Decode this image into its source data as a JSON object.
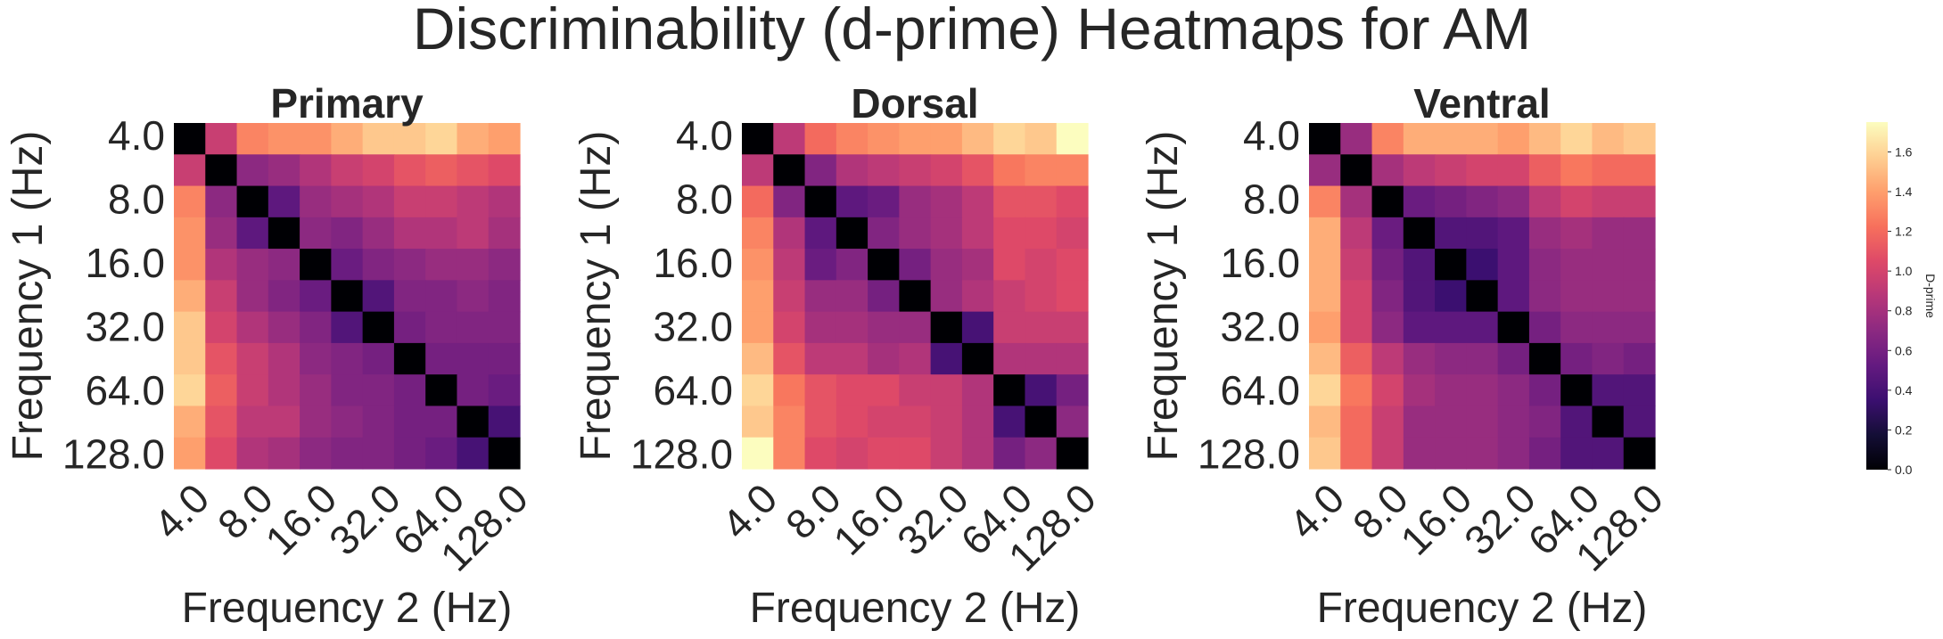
{
  "figure": {
    "title": "Discriminability (d-prime) Heatmaps for AM"
  },
  "chart_data": [
    {
      "type": "heatmap",
      "title": "Primary",
      "xlabel": "Frequency 2 (Hz)",
      "ylabel": "Frequency 1 (Hz)",
      "x_tick_labels": [
        "4.0",
        "8.0",
        "16.0",
        "32.0",
        "64.0",
        "128.0"
      ],
      "y_tick_labels": [
        "4.0",
        "8.0",
        "16.0",
        "32.0",
        "64.0",
        "128.0"
      ],
      "matrix": [
        [
          0.0,
          0.95,
          1.3,
          1.35,
          1.35,
          1.45,
          1.55,
          1.55,
          1.6,
          1.45,
          1.4
        ],
        [
          0.95,
          0.0,
          0.7,
          0.75,
          0.85,
          0.95,
          1.0,
          1.1,
          1.15,
          1.1,
          1.05
        ],
        [
          1.3,
          0.7,
          0.0,
          0.5,
          0.75,
          0.8,
          0.85,
          0.95,
          0.95,
          0.9,
          0.85
        ],
        [
          1.35,
          0.75,
          0.5,
          0.0,
          0.7,
          0.65,
          0.75,
          0.85,
          0.85,
          0.9,
          0.8
        ],
        [
          1.35,
          0.85,
          0.75,
          0.7,
          0.0,
          0.55,
          0.65,
          0.7,
          0.75,
          0.75,
          0.7
        ],
        [
          1.45,
          0.95,
          0.75,
          0.65,
          0.55,
          0.0,
          0.45,
          0.65,
          0.65,
          0.7,
          0.65
        ],
        [
          1.55,
          1.0,
          0.85,
          0.75,
          0.65,
          0.45,
          0.0,
          0.6,
          0.65,
          0.65,
          0.65
        ],
        [
          1.55,
          1.1,
          0.95,
          0.85,
          0.7,
          0.65,
          0.6,
          0.0,
          0.6,
          0.6,
          0.6
        ],
        [
          1.6,
          1.15,
          0.95,
          0.85,
          0.75,
          0.65,
          0.65,
          0.6,
          0.0,
          0.6,
          0.55
        ],
        [
          1.45,
          1.1,
          0.9,
          0.9,
          0.75,
          0.7,
          0.65,
          0.6,
          0.6,
          0.0,
          0.4
        ],
        [
          1.4,
          1.05,
          0.85,
          0.8,
          0.7,
          0.65,
          0.65,
          0.6,
          0.55,
          0.4,
          0.0
        ]
      ]
    },
    {
      "type": "heatmap",
      "title": "Dorsal",
      "xlabel": "Frequency 2 (Hz)",
      "ylabel": "Frequency 1 (Hz)",
      "x_tick_labels": [
        "4.0",
        "8.0",
        "16.0",
        "32.0",
        "64.0",
        "128.0"
      ],
      "y_tick_labels": [
        "4.0",
        "8.0",
        "16.0",
        "32.0",
        "64.0",
        "128.0"
      ],
      "matrix": [
        [
          0.0,
          0.9,
          1.2,
          1.3,
          1.35,
          1.4,
          1.4,
          1.5,
          1.6,
          1.55,
          1.75
        ],
        [
          0.9,
          0.0,
          0.65,
          0.85,
          0.9,
          0.95,
          1.0,
          1.1,
          1.25,
          1.3,
          1.3
        ],
        [
          1.2,
          0.65,
          0.0,
          0.5,
          0.55,
          0.75,
          0.8,
          0.9,
          1.1,
          1.1,
          1.05
        ],
        [
          1.3,
          0.85,
          0.5,
          0.0,
          0.65,
          0.75,
          0.8,
          0.9,
          1.05,
          1.05,
          1.0
        ],
        [
          1.35,
          0.9,
          0.55,
          0.65,
          0.0,
          0.6,
          0.75,
          0.8,
          1.05,
          1.0,
          1.05
        ],
        [
          1.4,
          0.95,
          0.75,
          0.75,
          0.6,
          0.0,
          0.75,
          0.85,
          0.95,
          1.0,
          1.05
        ],
        [
          1.4,
          1.0,
          0.8,
          0.8,
          0.75,
          0.75,
          0.0,
          0.4,
          0.95,
          0.95,
          0.95
        ],
        [
          1.5,
          1.1,
          0.9,
          0.9,
          0.8,
          0.85,
          0.4,
          0.0,
          0.85,
          0.85,
          0.85
        ],
        [
          1.6,
          1.25,
          1.1,
          1.05,
          1.05,
          0.95,
          0.95,
          0.85,
          0.0,
          0.4,
          0.6
        ],
        [
          1.55,
          1.3,
          1.1,
          1.05,
          1.0,
          1.0,
          0.95,
          0.85,
          0.4,
          0.0,
          0.7
        ],
        [
          1.75,
          1.3,
          1.05,
          1.0,
          1.05,
          1.05,
          0.95,
          0.85,
          0.6,
          0.7,
          0.0
        ]
      ]
    },
    {
      "type": "heatmap",
      "title": "Ventral",
      "xlabel": "Frequency 2 (Hz)",
      "ylabel": "Frequency 1 (Hz)",
      "x_tick_labels": [
        "4.0",
        "8.0",
        "16.0",
        "32.0",
        "64.0",
        "128.0"
      ],
      "y_tick_labels": [
        "4.0",
        "8.0",
        "16.0",
        "32.0",
        "64.0",
        "128.0"
      ],
      "matrix": [
        [
          0.0,
          0.75,
          1.3,
          1.45,
          1.45,
          1.45,
          1.4,
          1.5,
          1.6,
          1.5,
          1.55
        ],
        [
          0.75,
          0.0,
          0.8,
          0.9,
          0.95,
          1.0,
          1.0,
          1.15,
          1.25,
          1.2,
          1.2
        ],
        [
          1.3,
          0.8,
          0.0,
          0.55,
          0.6,
          0.65,
          0.7,
          0.9,
          1.0,
          0.95,
          0.95
        ],
        [
          1.45,
          0.9,
          0.55,
          0.0,
          0.45,
          0.45,
          0.5,
          0.75,
          0.8,
          0.75,
          0.75
        ],
        [
          1.45,
          0.95,
          0.6,
          0.45,
          0.0,
          0.35,
          0.5,
          0.7,
          0.75,
          0.75,
          0.75
        ],
        [
          1.45,
          1.0,
          0.65,
          0.45,
          0.35,
          0.0,
          0.5,
          0.7,
          0.75,
          0.75,
          0.75
        ],
        [
          1.4,
          1.0,
          0.7,
          0.5,
          0.5,
          0.5,
          0.0,
          0.6,
          0.7,
          0.7,
          0.7
        ],
        [
          1.5,
          1.15,
          0.9,
          0.75,
          0.7,
          0.7,
          0.6,
          0.0,
          0.6,
          0.65,
          0.6
        ],
        [
          1.6,
          1.25,
          1.0,
          0.8,
          0.75,
          0.75,
          0.7,
          0.6,
          0.0,
          0.45,
          0.45
        ],
        [
          1.5,
          1.2,
          0.95,
          0.75,
          0.75,
          0.75,
          0.7,
          0.65,
          0.45,
          0.0,
          0.45
        ],
        [
          1.55,
          1.2,
          0.95,
          0.75,
          0.75,
          0.75,
          0.7,
          0.6,
          0.45,
          0.45,
          0.0
        ]
      ]
    }
  ],
  "colorbar": {
    "label": "D-prime",
    "colormap": "magma",
    "vmin": 0.0,
    "vmax": 1.75,
    "ticks": [
      "0.0",
      "0.2",
      "0.4",
      "0.6",
      "0.8",
      "1.0",
      "1.2",
      "1.4",
      "1.6"
    ]
  }
}
